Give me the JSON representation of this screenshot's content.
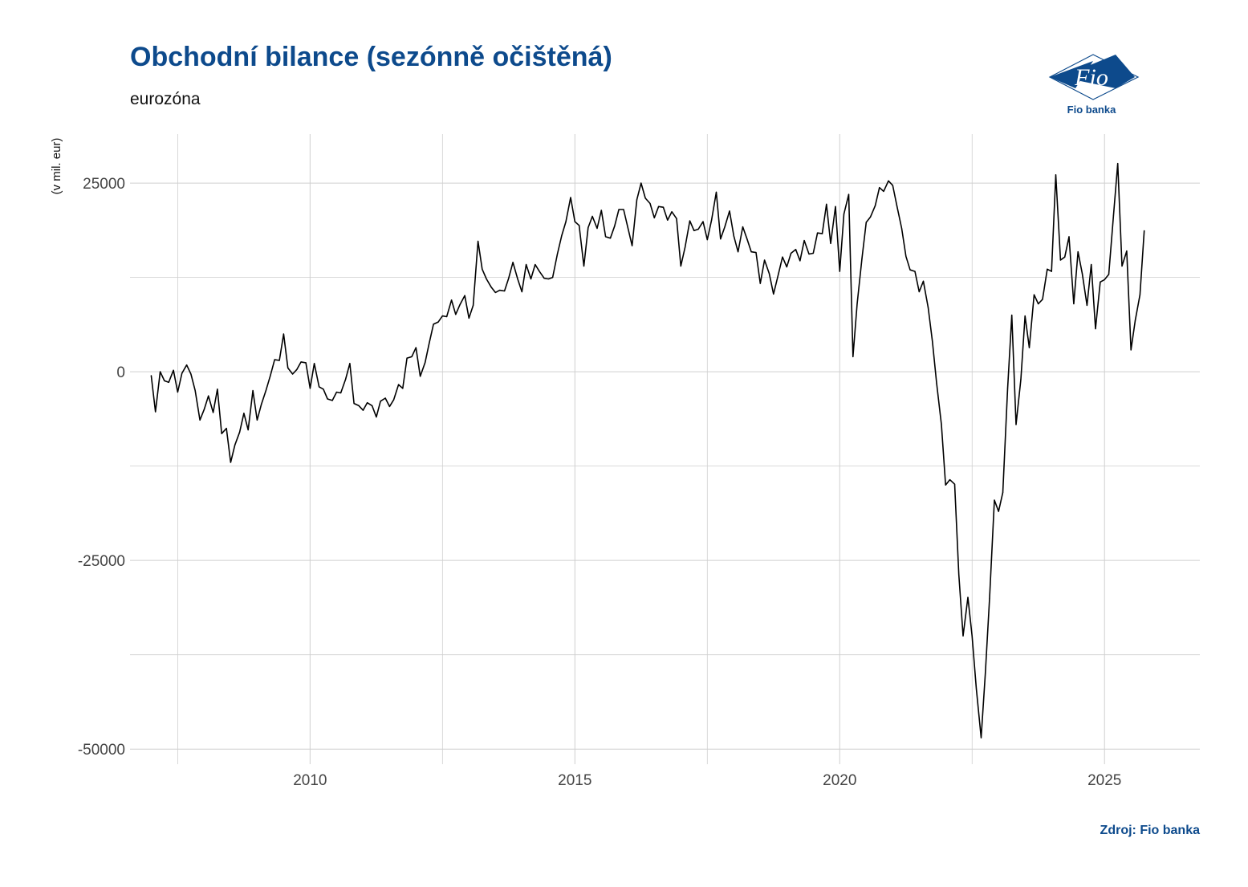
{
  "header": {
    "title": "Obchodní bilance (sezónně očištěná)",
    "subtitle": "eurozóna",
    "source": "Zdroj: Fio banka"
  },
  "logo": {
    "text": "Fio",
    "caption": "Fio banka",
    "color": "#0d4a8c"
  },
  "colors": {
    "brand": "#0d4a8c",
    "line": "#000000",
    "grid": "#cfcfcf",
    "tick_text": "#444444"
  },
  "chart_data": {
    "type": "line",
    "title": "Obchodní bilance (sezónně očištěná)",
    "subtitle": "eurozóna",
    "xlabel": "",
    "ylabel": "(v mil. eur)",
    "xlim": [
      2006.6,
      2026.8
    ],
    "ylim": [
      -52000,
      31500
    ],
    "x_ticks": [
      2010,
      2015,
      2020,
      2025
    ],
    "x_minor_gridlines": [
      2007.5,
      2012.5,
      2017.5,
      2022.5
    ],
    "y_ticks": [
      -50000,
      -25000,
      0,
      25000
    ],
    "y_minor_gridlines": [
      -37500,
      -12500,
      12500
    ],
    "grid": true,
    "legend": "none",
    "series": [
      {
        "points": [
          [
            2007.0,
            -500
          ],
          [
            2007.08,
            -5300
          ],
          [
            2007.17,
            0
          ],
          [
            2007.25,
            -1200
          ],
          [
            2007.33,
            -1400
          ],
          [
            2007.42,
            200
          ],
          [
            2007.5,
            -2700
          ],
          [
            2007.58,
            -200
          ],
          [
            2007.67,
            900
          ],
          [
            2007.75,
            -300
          ],
          [
            2007.83,
            -2500
          ],
          [
            2007.92,
            -6400
          ],
          [
            2008.0,
            -5000
          ],
          [
            2008.08,
            -3200
          ],
          [
            2008.17,
            -5400
          ],
          [
            2008.25,
            -2300
          ],
          [
            2008.33,
            -8200
          ],
          [
            2008.42,
            -7500
          ],
          [
            2008.5,
            -12000
          ],
          [
            2008.58,
            -9700
          ],
          [
            2008.67,
            -8000
          ],
          [
            2008.75,
            -5500
          ],
          [
            2008.83,
            -7700
          ],
          [
            2008.92,
            -2500
          ],
          [
            2009.0,
            -6400
          ],
          [
            2009.08,
            -4300
          ],
          [
            2009.17,
            -2400
          ],
          [
            2009.25,
            -500
          ],
          [
            2009.33,
            1600
          ],
          [
            2009.42,
            1500
          ],
          [
            2009.5,
            5000
          ],
          [
            2009.58,
            500
          ],
          [
            2009.67,
            -300
          ],
          [
            2009.75,
            300
          ],
          [
            2009.83,
            1300
          ],
          [
            2009.92,
            1200
          ],
          [
            2010.0,
            -2200
          ],
          [
            2010.08,
            1100
          ],
          [
            2010.17,
            -2000
          ],
          [
            2010.25,
            -2300
          ],
          [
            2010.33,
            -3600
          ],
          [
            2010.42,
            -3800
          ],
          [
            2010.5,
            -2700
          ],
          [
            2010.58,
            -2800
          ],
          [
            2010.67,
            -1000
          ],
          [
            2010.75,
            1100
          ],
          [
            2010.83,
            -4200
          ],
          [
            2010.92,
            -4500
          ],
          [
            2011.0,
            -5100
          ],
          [
            2011.08,
            -4100
          ],
          [
            2011.17,
            -4500
          ],
          [
            2011.25,
            -6000
          ],
          [
            2011.33,
            -3900
          ],
          [
            2011.42,
            -3500
          ],
          [
            2011.5,
            -4600
          ],
          [
            2011.58,
            -3700
          ],
          [
            2011.67,
            -1700
          ],
          [
            2011.75,
            -2200
          ],
          [
            2011.83,
            1800
          ],
          [
            2011.92,
            2000
          ],
          [
            2012.0,
            3200
          ],
          [
            2012.08,
            -600
          ],
          [
            2012.17,
            1200
          ],
          [
            2012.25,
            3800
          ],
          [
            2012.33,
            6300
          ],
          [
            2012.42,
            6600
          ],
          [
            2012.5,
            7400
          ],
          [
            2012.58,
            7300
          ],
          [
            2012.67,
            9500
          ],
          [
            2012.75,
            7600
          ],
          [
            2012.83,
            8900
          ],
          [
            2012.92,
            10100
          ],
          [
            2013.0,
            7100
          ],
          [
            2013.08,
            8800
          ],
          [
            2013.17,
            17300
          ],
          [
            2013.25,
            13600
          ],
          [
            2013.33,
            12300
          ],
          [
            2013.42,
            11200
          ],
          [
            2013.5,
            10500
          ],
          [
            2013.58,
            10800
          ],
          [
            2013.67,
            10700
          ],
          [
            2013.75,
            12400
          ],
          [
            2013.83,
            14500
          ],
          [
            2013.92,
            12300
          ],
          [
            2014.0,
            10600
          ],
          [
            2014.08,
            14200
          ],
          [
            2014.17,
            12300
          ],
          [
            2014.25,
            14200
          ],
          [
            2014.33,
            13300
          ],
          [
            2014.42,
            12400
          ],
          [
            2014.5,
            12300
          ],
          [
            2014.58,
            12500
          ],
          [
            2014.67,
            15600
          ],
          [
            2014.75,
            18000
          ],
          [
            2014.83,
            19900
          ],
          [
            2014.92,
            23100
          ],
          [
            2015.0,
            19900
          ],
          [
            2015.08,
            19400
          ],
          [
            2015.17,
            14000
          ],
          [
            2015.25,
            19100
          ],
          [
            2015.33,
            20600
          ],
          [
            2015.42,
            19000
          ],
          [
            2015.5,
            21400
          ],
          [
            2015.58,
            17900
          ],
          [
            2015.67,
            17700
          ],
          [
            2015.75,
            19300
          ],
          [
            2015.83,
            21500
          ],
          [
            2015.92,
            21500
          ],
          [
            2016.0,
            19100
          ],
          [
            2016.08,
            16700
          ],
          [
            2016.17,
            22800
          ],
          [
            2016.25,
            25000
          ],
          [
            2016.33,
            23000
          ],
          [
            2016.42,
            22300
          ],
          [
            2016.5,
            20400
          ],
          [
            2016.58,
            21900
          ],
          [
            2016.67,
            21800
          ],
          [
            2016.75,
            20100
          ],
          [
            2016.83,
            21200
          ],
          [
            2016.92,
            20300
          ],
          [
            2017.0,
            14000
          ],
          [
            2017.08,
            16500
          ],
          [
            2017.17,
            20000
          ],
          [
            2017.25,
            18700
          ],
          [
            2017.33,
            18900
          ],
          [
            2017.42,
            19900
          ],
          [
            2017.5,
            17500
          ],
          [
            2017.58,
            20100
          ],
          [
            2017.67,
            23800
          ],
          [
            2017.75,
            17600
          ],
          [
            2017.83,
            19200
          ],
          [
            2017.92,
            21300
          ],
          [
            2018.0,
            18000
          ],
          [
            2018.08,
            15900
          ],
          [
            2018.17,
            19200
          ],
          [
            2018.25,
            17600
          ],
          [
            2018.33,
            15900
          ],
          [
            2018.42,
            15800
          ],
          [
            2018.5,
            11700
          ],
          [
            2018.58,
            14800
          ],
          [
            2018.67,
            13000
          ],
          [
            2018.75,
            10300
          ],
          [
            2018.83,
            12600
          ],
          [
            2018.92,
            15200
          ],
          [
            2019.0,
            13900
          ],
          [
            2019.08,
            15700
          ],
          [
            2019.17,
            16200
          ],
          [
            2019.25,
            14700
          ],
          [
            2019.33,
            17400
          ],
          [
            2019.42,
            15600
          ],
          [
            2019.5,
            15700
          ],
          [
            2019.58,
            18400
          ],
          [
            2019.67,
            18300
          ],
          [
            2019.75,
            22200
          ],
          [
            2019.83,
            17000
          ],
          [
            2019.92,
            21900
          ],
          [
            2020.0,
            13300
          ],
          [
            2020.08,
            20900
          ],
          [
            2020.17,
            23500
          ],
          [
            2020.25,
            2000
          ],
          [
            2020.33,
            9000
          ],
          [
            2020.42,
            15000
          ],
          [
            2020.5,
            19800
          ],
          [
            2020.58,
            20500
          ],
          [
            2020.67,
            22000
          ],
          [
            2020.75,
            24400
          ],
          [
            2020.83,
            23900
          ],
          [
            2020.92,
            25300
          ],
          [
            2021.0,
            24700
          ],
          [
            2021.08,
            22000
          ],
          [
            2021.17,
            19000
          ],
          [
            2021.25,
            15300
          ],
          [
            2021.33,
            13500
          ],
          [
            2021.42,
            13300
          ],
          [
            2021.5,
            10600
          ],
          [
            2021.58,
            12000
          ],
          [
            2021.67,
            8500
          ],
          [
            2021.75,
            4000
          ],
          [
            2021.83,
            -1500
          ],
          [
            2021.92,
            -7000
          ],
          [
            2022.0,
            -15000
          ],
          [
            2022.08,
            -14300
          ],
          [
            2022.17,
            -14900
          ],
          [
            2022.25,
            -26900
          ],
          [
            2022.33,
            -35000
          ],
          [
            2022.42,
            -29900
          ],
          [
            2022.5,
            -35000
          ],
          [
            2022.58,
            -42000
          ],
          [
            2022.67,
            -48500
          ],
          [
            2022.75,
            -40000
          ],
          [
            2022.83,
            -30000
          ],
          [
            2022.92,
            -17000
          ],
          [
            2023.0,
            -18500
          ],
          [
            2023.08,
            -16000
          ],
          [
            2023.17,
            -2200
          ],
          [
            2023.25,
            7500
          ],
          [
            2023.33,
            -7000
          ],
          [
            2023.42,
            -1000
          ],
          [
            2023.5,
            7400
          ],
          [
            2023.58,
            3200
          ],
          [
            2023.67,
            10200
          ],
          [
            2023.75,
            9000
          ],
          [
            2023.83,
            9600
          ],
          [
            2023.92,
            13600
          ],
          [
            2024.0,
            13300
          ],
          [
            2024.08,
            26100
          ],
          [
            2024.17,
            14800
          ],
          [
            2024.25,
            15200
          ],
          [
            2024.33,
            17900
          ],
          [
            2024.42,
            9000
          ],
          [
            2024.5,
            15900
          ],
          [
            2024.58,
            13000
          ],
          [
            2024.67,
            8800
          ],
          [
            2024.75,
            14200
          ],
          [
            2024.83,
            5700
          ],
          [
            2024.92,
            11900
          ],
          [
            2025.0,
            12200
          ],
          [
            2025.08,
            12900
          ],
          [
            2025.17,
            20700
          ],
          [
            2025.25,
            27600
          ],
          [
            2025.33,
            14000
          ],
          [
            2025.42,
            16000
          ],
          [
            2025.5,
            2900
          ],
          [
            2025.58,
            6800
          ],
          [
            2025.67,
            10200
          ],
          [
            2025.75,
            18700
          ]
        ]
      }
    ]
  }
}
